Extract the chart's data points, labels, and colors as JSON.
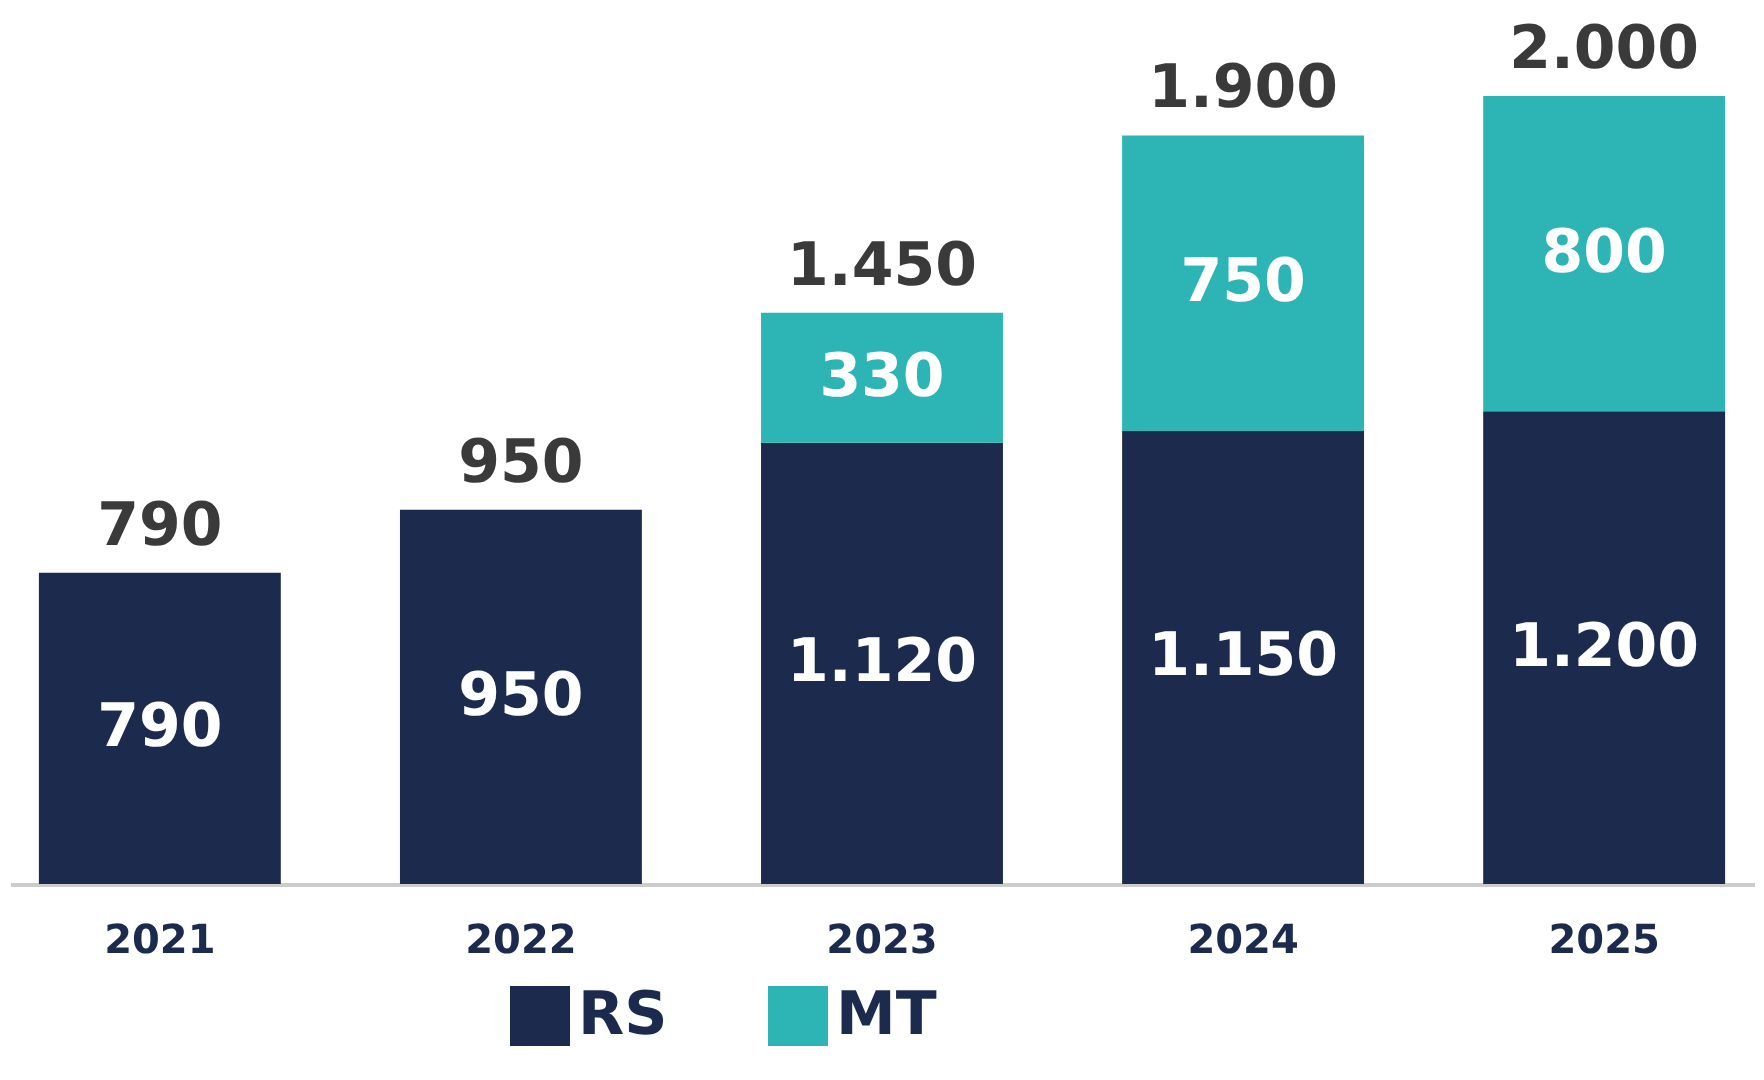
{
  "chart_data": {
    "type": "bar",
    "stacked": true,
    "categories": [
      "2021",
      "2022",
      "2023",
      "2024",
      "2025"
    ],
    "series": [
      {
        "name": "RS",
        "color": "#1c2a4e",
        "values": [
          790,
          950,
          1120,
          1150,
          1200
        ],
        "value_labels": [
          "790",
          "950",
          "1.120",
          "1.150",
          "1.200"
        ]
      },
      {
        "name": "MT",
        "color": "#2db5b5",
        "values": [
          null,
          null,
          330,
          750,
          800
        ],
        "value_labels": [
          null,
          null,
          "330",
          "750",
          "800"
        ]
      }
    ],
    "totals": [
      "790",
      "950",
      "1.450",
      "1.900",
      "2.000"
    ],
    "grid": false,
    "legend": "bottom"
  }
}
